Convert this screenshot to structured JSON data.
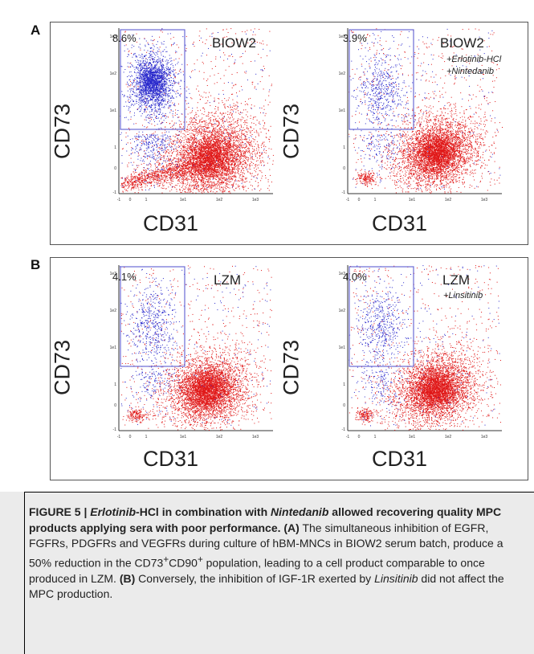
{
  "panels": [
    {
      "letter": "A",
      "plots": [
        {
          "pct": "8.6%",
          "condition": "BIOW2",
          "sub1": "",
          "sub2": "",
          "ylabel": "CD73",
          "xlabel": "CD31",
          "gate_density": "high"
        },
        {
          "pct": "3.9%",
          "condition": "BIOW2",
          "sub1": "+Erlotinib-HCl",
          "sub2": "+Nintedanib",
          "ylabel": "CD73",
          "xlabel": "CD31",
          "gate_density": "low"
        }
      ]
    },
    {
      "letter": "B",
      "plots": [
        {
          "pct": "4.1%",
          "condition": "LZM",
          "sub1": "",
          "sub2": "",
          "ylabel": "CD73",
          "xlabel": "CD31",
          "gate_density": "low"
        },
        {
          "pct": "4.0%",
          "condition": "LZM",
          "sub1": "+Linsitinib",
          "sub2": "",
          "ylabel": "CD73",
          "xlabel": "CD31",
          "gate_density": "low"
        }
      ]
    }
  ],
  "axis_ticks": {
    "x": [
      "-1",
      "0",
      "1",
      "1e1",
      "1e2",
      "1e3"
    ],
    "y": [
      "-1",
      "0",
      "1",
      "1e1",
      "1e2",
      "1e3"
    ]
  },
  "colors": {
    "gate_events": "#2a2acc",
    "other_events": "#e01818",
    "gate_box": "#6b6bd6"
  },
  "caption": {
    "title_prefix": "FIGURE 5 | ",
    "title_italic1": "Erlotinib",
    "title_mid": "-HCl in combination with ",
    "title_italic2": "Nintedanib",
    "title_rest": " allowed recovering quality MPC products applying sera with poor performance.",
    "label_a": "(A)",
    "text_a1": " The simultaneous inhibition of EGFR, FGFRs, PDGFRs and VEGFRs during culture of hBM-MNCs in BIOW2 serum batch, produce a 50% reduction in the CD73",
    "sup1": "+",
    "text_a2": "CD90",
    "sup2": "+",
    "text_a3": " population, leading to a cell product comparable to once produced in LZM. ",
    "label_b": "(B)",
    "text_b1": " Conversely, the inhibition of IGF-1R exerted by ",
    "text_b_italic": "Linsitinib",
    "text_b2": " did not affect the MPC production."
  }
}
